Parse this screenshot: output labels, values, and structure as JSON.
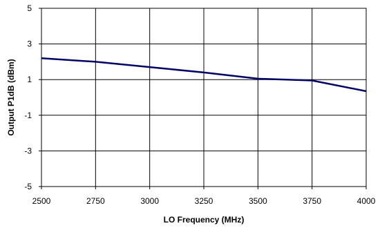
{
  "chart_data": {
    "type": "line",
    "title": "",
    "xlabel": "LO Frequency (MHz)",
    "ylabel": "Output P1dB (dBm)",
    "xlim": [
      2500,
      4000
    ],
    "ylim": [
      -5,
      5
    ],
    "x_ticks": [
      "2500",
      "2750",
      "3000",
      "3250",
      "3500",
      "3750",
      "4000"
    ],
    "y_ticks": [
      "5",
      "3",
      "1",
      "-1",
      "-3",
      "-5"
    ],
    "grid": true,
    "legend": "none",
    "series": [
      {
        "color": "#000066",
        "x": [
          2500,
          2750,
          3000,
          3250,
          3500,
          3750,
          4000
        ],
        "y": [
          2.2,
          2.0,
          1.7,
          1.4,
          1.05,
          0.95,
          0.35
        ]
      }
    ]
  }
}
